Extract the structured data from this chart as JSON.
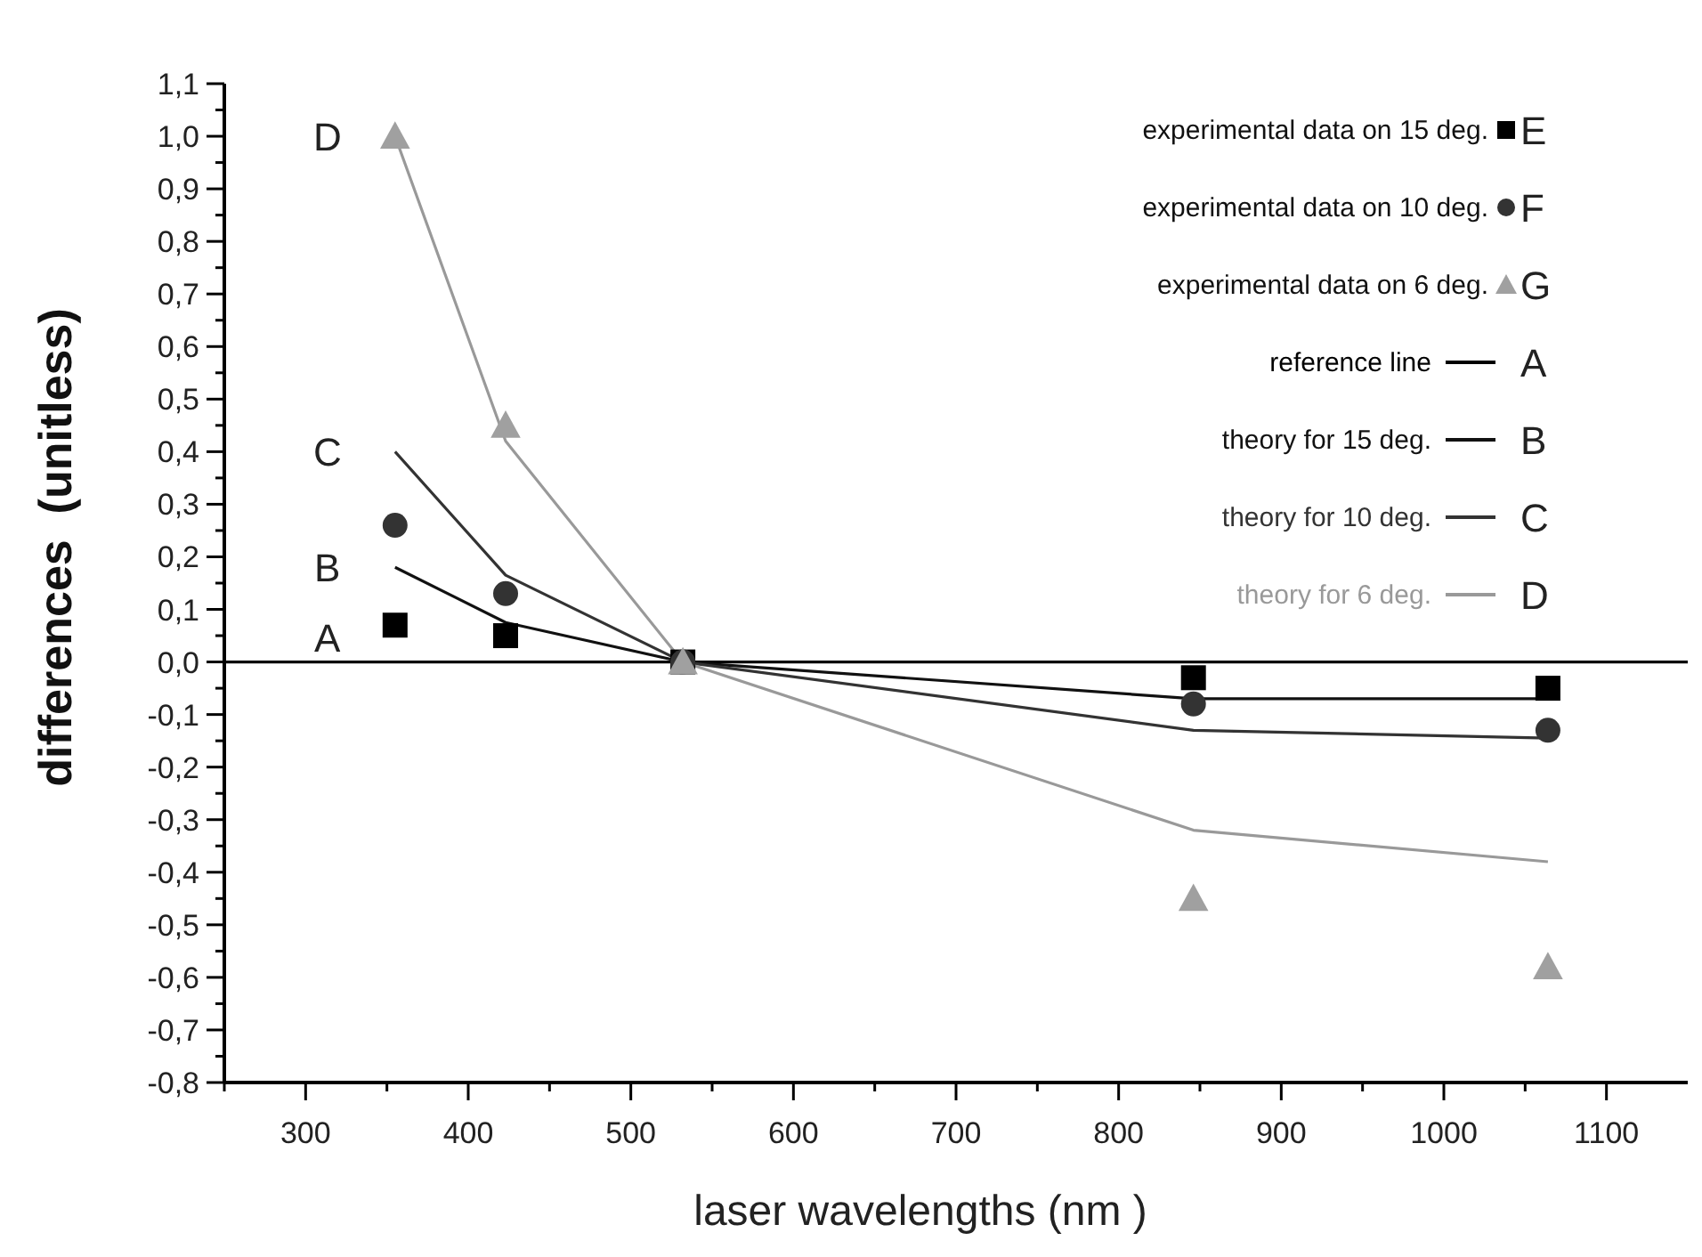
{
  "chart_data": {
    "type": "scatter",
    "xlabel": "laser wavelengths (nm )",
    "ylabel": "differences  (unitless)",
    "xlim": [
      250,
      1150
    ],
    "ylim": [
      -0.8,
      1.1
    ],
    "xticks": [
      {
        "value": 250,
        "label": null
      },
      300,
      {
        "value": 350,
        "label": null
      },
      400,
      {
        "value": 450,
        "label": null
      },
      500,
      {
        "value": 550,
        "label": null
      },
      600,
      {
        "value": 650,
        "label": null
      },
      700,
      {
        "value": 750,
        "label": null
      },
      800,
      {
        "value": 850,
        "label": null
      },
      900,
      {
        "value": 950,
        "label": null
      },
      1000,
      {
        "value": 1050,
        "label": null
      },
      1100
    ],
    "yticks": [
      {
        "value": -0.8,
        "label": "-0,8"
      },
      {
        "value": -0.75,
        "label": null
      },
      {
        "value": -0.7,
        "label": "-0,7"
      },
      {
        "value": -0.65,
        "label": null
      },
      {
        "value": -0.6,
        "label": "-0,6"
      },
      {
        "value": -0.55,
        "label": null
      },
      {
        "value": -0.5,
        "label": "-0,5"
      },
      {
        "value": -0.45,
        "label": null
      },
      {
        "value": -0.4,
        "label": "-0,4"
      },
      {
        "value": -0.35,
        "label": null
      },
      {
        "value": -0.3,
        "label": "-0,3"
      },
      {
        "value": -0.25,
        "label": null
      },
      {
        "value": -0.2,
        "label": "-0,2"
      },
      {
        "value": -0.15,
        "label": null
      },
      {
        "value": -0.1,
        "label": "-0,1"
      },
      {
        "value": -0.05,
        "label": null
      },
      {
        "value": 0,
        "label": "0,0"
      },
      {
        "value": 0.05,
        "label": null
      },
      {
        "value": 0.1,
        "label": "0,1"
      },
      {
        "value": 0.15,
        "label": null
      },
      {
        "value": 0.2,
        "label": "0,2"
      },
      {
        "value": 0.25,
        "label": null
      },
      {
        "value": 0.3,
        "label": "0,3"
      },
      {
        "value": 0.35,
        "label": null
      },
      {
        "value": 0.4,
        "label": "0,4"
      },
      {
        "value": 0.45,
        "label": null
      },
      {
        "value": 0.5,
        "label": "0,5"
      },
      {
        "value": 0.55,
        "label": null
      },
      {
        "value": 0.6,
        "label": "0,6"
      },
      {
        "value": 0.65,
        "label": null
      },
      {
        "value": 0.7,
        "label": "0,7"
      },
      {
        "value": 0.75,
        "label": null
      },
      {
        "value": 0.8,
        "label": "0,8"
      },
      {
        "value": 0.85,
        "label": null
      },
      {
        "value": 0.9,
        "label": "0,9"
      },
      {
        "value": 0.95,
        "label": null
      },
      {
        "value": 1.0,
        "label": "1,0"
      },
      {
        "value": 1.05,
        "label": null
      },
      {
        "value": 1.1,
        "label": "1,1"
      }
    ],
    "grid": false,
    "legend": "top right",
    "x": [
      355,
      423,
      532,
      846,
      1064
    ],
    "series": [
      {
        "name": "experimental data on 15 deg.",
        "marker": "square",
        "color": "#000000",
        "values": [
          0.07,
          0.05,
          0,
          -0.03,
          -0.05
        ]
      },
      {
        "name": "experimental data on 10 deg.",
        "marker": "circle",
        "color": "#333333",
        "values": [
          0.26,
          0.13,
          0,
          -0.08,
          -0.13
        ]
      },
      {
        "name": "experimental data on 6 deg.",
        "marker": "triangle",
        "color": "#a0a0a0",
        "values": [
          1.0,
          0.45,
          0,
          -0.45,
          -0.58
        ]
      },
      {
        "name": "reference line",
        "type": "line",
        "marker": "none",
        "color": "#000000",
        "x": [
          250,
          1150
        ],
        "values": [
          0,
          0
        ]
      },
      {
        "name": "theory for 15 deg.",
        "type": "line",
        "marker": "none",
        "color": "#111111",
        "values": [
          0.18,
          0.075,
          0,
          -0.07,
          -0.07
        ]
      },
      {
        "name": "theory for 10 deg.",
        "type": "line",
        "marker": "none",
        "color": "#333333",
        "values": [
          0.4,
          0.165,
          0,
          -0.13,
          -0.145
        ]
      },
      {
        "name": "theory for 6 deg.",
        "type": "line",
        "marker": "none",
        "color": "#999999",
        "values": [
          1.0,
          0.42,
          0,
          -0.32,
          -0.38
        ]
      }
    ],
    "annotations": [
      "E",
      "F",
      "G",
      "A",
      "B",
      "C",
      "D"
    ]
  }
}
